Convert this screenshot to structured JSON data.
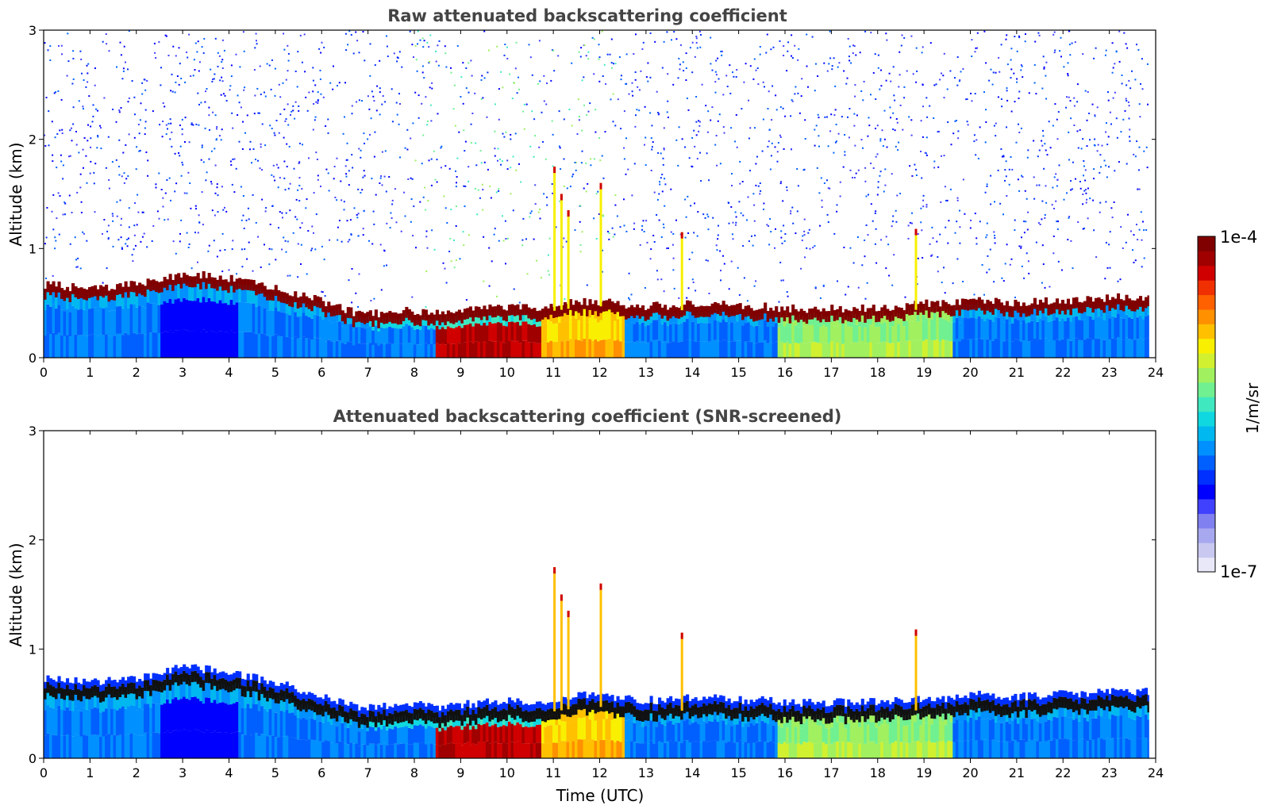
{
  "chart_data": [
    {
      "type": "heatmap",
      "title": "Raw attenuated backscattering coefficient",
      "xlabel": "",
      "ylabel": "Altitude (km)",
      "xlim": [
        0,
        24
      ],
      "ylim": [
        0,
        3
      ],
      "xticks": [
        "0",
        "1",
        "2",
        "3",
        "4",
        "5",
        "6",
        "7",
        "8",
        "9",
        "10",
        "11",
        "12",
        "13",
        "14",
        "15",
        "16",
        "17",
        "18",
        "19",
        "20",
        "21",
        "22",
        "23",
        "24"
      ],
      "yticks": [
        "0",
        "1",
        "2",
        "3"
      ],
      "screened": false,
      "data_end_hour": 23.85,
      "layer_top_km": [
        [
          0.0,
          0.62
        ],
        [
          0.5,
          0.6
        ],
        [
          1.0,
          0.58
        ],
        [
          1.5,
          0.6
        ],
        [
          2.0,
          0.62
        ],
        [
          2.5,
          0.68
        ],
        [
          3.0,
          0.72
        ],
        [
          3.5,
          0.7
        ],
        [
          4.0,
          0.67
        ],
        [
          4.5,
          0.63
        ],
        [
          5.0,
          0.58
        ],
        [
          5.5,
          0.52
        ],
        [
          6.0,
          0.47
        ],
        [
          6.5,
          0.38
        ],
        [
          7.0,
          0.35
        ],
        [
          7.5,
          0.37
        ],
        [
          8.0,
          0.38
        ],
        [
          8.5,
          0.36
        ],
        [
          9.0,
          0.38
        ],
        [
          9.5,
          0.4
        ],
        [
          10.0,
          0.42
        ],
        [
          10.5,
          0.4
        ],
        [
          11.0,
          0.43
        ],
        [
          11.5,
          0.46
        ],
        [
          12.0,
          0.47
        ],
        [
          12.5,
          0.44
        ],
        [
          13.0,
          0.42
        ],
        [
          13.5,
          0.43
        ],
        [
          14.0,
          0.44
        ],
        [
          14.5,
          0.45
        ],
        [
          15.0,
          0.42
        ],
        [
          15.5,
          0.42
        ],
        [
          16.0,
          0.4
        ],
        [
          16.5,
          0.4
        ],
        [
          17.0,
          0.4
        ],
        [
          17.5,
          0.4
        ],
        [
          18.0,
          0.41
        ],
        [
          18.5,
          0.42
        ],
        [
          19.0,
          0.45
        ],
        [
          19.5,
          0.44
        ],
        [
          20.0,
          0.48
        ],
        [
          20.5,
          0.46
        ],
        [
          21.0,
          0.45
        ],
        [
          21.5,
          0.47
        ],
        [
          22.0,
          0.48
        ],
        [
          22.5,
          0.48
        ],
        [
          23.0,
          0.5
        ],
        [
          23.5,
          0.5
        ],
        [
          23.85,
          0.5
        ]
      ],
      "notes_on_intensity": "near-surface aerosol high (red) 8.4-10.7 UTC, moderate (yellow/green) 10.7-12.5 and 16-19.5 UTC"
    },
    {
      "type": "heatmap",
      "title": "Attenuated backscattering coefficient (SNR-screened)",
      "xlabel": "Time (UTC)",
      "ylabel": "Altitude (km)",
      "xlim": [
        0,
        24
      ],
      "ylim": [
        0,
        3
      ],
      "xticks": [
        "0",
        "1",
        "2",
        "3",
        "4",
        "5",
        "6",
        "7",
        "8",
        "9",
        "10",
        "11",
        "12",
        "13",
        "14",
        "15",
        "16",
        "17",
        "18",
        "19",
        "20",
        "21",
        "22",
        "23",
        "24"
      ],
      "yticks": [
        "0",
        "1",
        "2",
        "3"
      ],
      "screened": true,
      "data_end_hour": 23.85
    }
  ],
  "colorbar": {
    "label": "1/m/sr",
    "max_label": "1e-4",
    "min_label": "1e-7",
    "colors": [
      "#e8e8f8",
      "#c8c8f0",
      "#a8a8f0",
      "#8080f0",
      "#4040ff",
      "#0000ff",
      "#0030ff",
      "#0060ff",
      "#0090ff",
      "#00b8f0",
      "#10d8e0",
      "#40e8c0",
      "#70f090",
      "#a0f060",
      "#d0f030",
      "#f8f000",
      "#ffc000",
      "#ff9000",
      "#ff6000",
      "#f03000",
      "#d00000",
      "#a00000",
      "#800000"
    ]
  }
}
